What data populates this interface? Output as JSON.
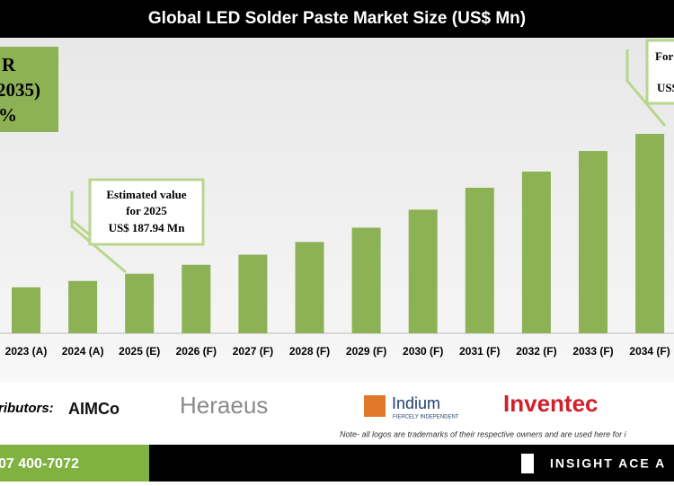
{
  "chart_data": {
    "type": "bar",
    "title": "Global LED Solder Paste Market Size (US$ Mn)",
    "categories": [
      "2023 (A)",
      "2024 (A)",
      "2025 (E)",
      "2026 (F)",
      "2027 (F)",
      "2028 (F)",
      "2029 (F)",
      "2030 (F)",
      "2031 (F)",
      "2032 (F)",
      "2033 (F)",
      "2034 (F)"
    ],
    "values": [
      145,
      165,
      187.94,
      216,
      248,
      288,
      333,
      390,
      459,
      510,
      575,
      629
    ],
    "color": "#8db255",
    "annotations": {
      "cagr": [
        "R",
        "2035)",
        "%"
      ],
      "estimate": [
        "Estimated value",
        "for 2025",
        "US$ 187.94 Mn"
      ],
      "forecast": [
        "For",
        "US$"
      ]
    }
  },
  "logos": {
    "label": "ributors:",
    "names": [
      "AIMCo",
      "Heraeus",
      "Indium",
      "FIERCELY INDEPENDENT",
      "Inventec"
    ],
    "note": "Note- all logos are trademarks of their respective owners and are used here for i"
  },
  "footer": {
    "phone": "07 400-7072",
    "brand": "INSIGHT ACE A"
  }
}
